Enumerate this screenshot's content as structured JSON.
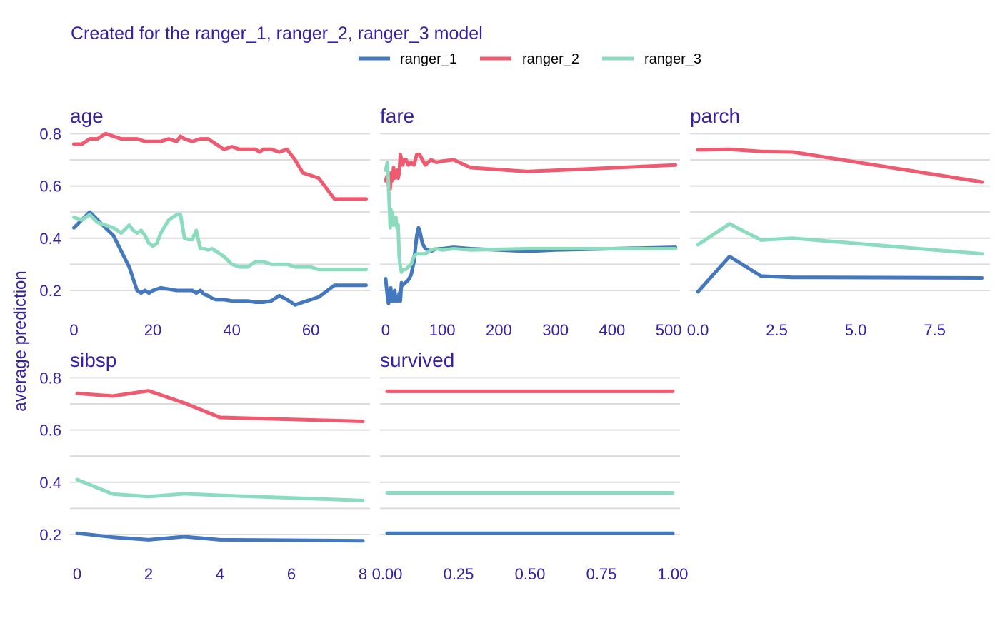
{
  "subtitle": "Created for the ranger_1, ranger_2, ranger_3 model",
  "ylabel": "average prediction",
  "colors": {
    "text": "#371ea3",
    "ranger_1": "#4378bf",
    "ranger_2": "#f05a71",
    "ranger_3": "#8bdcbe"
  },
  "chart_data": {
    "type": "line",
    "ylabel": "average prediction",
    "ylim": [
      0.11,
      0.82
    ],
    "yticks": [
      0.2,
      0.4,
      0.6,
      0.8
    ],
    "grid": true,
    "legend_position": "top",
    "legend": [
      "ranger_1",
      "ranger_2",
      "ranger_3"
    ],
    "panels": [
      {
        "title": "age",
        "xlim": [
          -1,
          75
        ],
        "xticks": [
          0,
          20,
          40,
          60
        ],
        "series": [
          {
            "name": "ranger_1",
            "x": [
              0,
              2,
              4,
              6,
              8,
              10,
              12,
              14,
              16,
              17,
              18,
              19,
              20,
              22,
              24,
              26,
              28,
              30,
              31,
              32,
              33,
              34,
              35,
              36,
              38,
              40,
              42,
              44,
              46,
              48,
              50,
              52,
              54,
              56,
              58,
              62,
              66,
              70,
              74
            ],
            "y": [
              0.44,
              0.47,
              0.5,
              0.47,
              0.44,
              0.41,
              0.35,
              0.29,
              0.2,
              0.19,
              0.2,
              0.19,
              0.2,
              0.21,
              0.205,
              0.2,
              0.2,
              0.2,
              0.19,
              0.2,
              0.185,
              0.18,
              0.17,
              0.165,
              0.165,
              0.16,
              0.16,
              0.16,
              0.155,
              0.155,
              0.16,
              0.18,
              0.165,
              0.145,
              0.155,
              0.175,
              0.22,
              0.22,
              0.22
            ]
          },
          {
            "name": "ranger_2",
            "x": [
              0,
              2,
              4,
              6,
              8,
              10,
              12,
              14,
              16,
              18,
              20,
              22,
              24,
              26,
              27,
              28,
              30,
              32,
              34,
              36,
              38,
              40,
              42,
              44,
              46,
              47,
              48,
              50,
              52,
              54,
              56,
              58,
              62,
              66,
              70,
              74
            ],
            "y": [
              0.76,
              0.76,
              0.78,
              0.78,
              0.8,
              0.79,
              0.78,
              0.78,
              0.78,
              0.77,
              0.77,
              0.77,
              0.78,
              0.77,
              0.79,
              0.78,
              0.77,
              0.78,
              0.78,
              0.76,
              0.74,
              0.75,
              0.74,
              0.74,
              0.74,
              0.73,
              0.74,
              0.74,
              0.73,
              0.74,
              0.7,
              0.65,
              0.63,
              0.55,
              0.55,
              0.55
            ]
          },
          {
            "name": "ranger_3",
            "x": [
              0,
              2,
              4,
              6,
              8,
              10,
              12,
              14,
              15,
              16,
              17,
              18,
              19,
              20,
              21,
              22,
              24,
              26,
              27,
              28,
              29,
              30,
              31,
              32,
              33,
              34,
              35,
              36,
              38,
              40,
              42,
              44,
              46,
              48,
              50,
              52,
              54,
              56,
              58,
              60,
              62,
              66,
              70,
              74
            ],
            "y": [
              0.48,
              0.47,
              0.49,
              0.46,
              0.45,
              0.44,
              0.42,
              0.45,
              0.43,
              0.42,
              0.43,
              0.41,
              0.38,
              0.37,
              0.38,
              0.42,
              0.47,
              0.49,
              0.49,
              0.4,
              0.395,
              0.395,
              0.43,
              0.36,
              0.36,
              0.355,
              0.36,
              0.35,
              0.33,
              0.3,
              0.29,
              0.29,
              0.31,
              0.31,
              0.3,
              0.3,
              0.3,
              0.29,
              0.29,
              0.29,
              0.28,
              0.28,
              0.28,
              0.28
            ]
          }
        ]
      },
      {
        "title": "fare",
        "xlim": [
          -10,
          520
        ],
        "xticks": [
          0,
          100,
          200,
          300,
          400,
          500
        ],
        "series": [
          {
            "name": "ranger_1",
            "x": [
              0,
              3,
              5,
              7,
              8,
              9,
              10,
              12,
              14,
              16,
              18,
              20,
              22,
              24,
              26,
              28,
              30,
              35,
              40,
              45,
              50,
              55,
              58,
              60,
              65,
              70,
              80,
              90,
              100,
              120,
              150,
              200,
              250,
              300,
              400,
              512
            ],
            "y": [
              0.245,
              0.18,
              0.15,
              0.2,
              0.16,
              0.21,
              0.17,
              0.16,
              0.16,
              0.2,
              0.16,
              0.17,
              0.16,
              0.19,
              0.16,
              0.23,
              0.22,
              0.23,
              0.24,
              0.26,
              0.31,
              0.41,
              0.44,
              0.43,
              0.38,
              0.36,
              0.35,
              0.36,
              0.36,
              0.365,
              0.36,
              0.355,
              0.35,
              0.355,
              0.36,
              0.365
            ]
          },
          {
            "name": "ranger_2",
            "x": [
              0,
              3,
              5,
              7,
              8,
              10,
              12,
              14,
              16,
              18,
              20,
              22,
              24,
              26,
              28,
              30,
              33,
              36,
              40,
              45,
              50,
              55,
              60,
              65,
              70,
              80,
              90,
              100,
              120,
              150,
              250,
              512
            ],
            "y": [
              0.62,
              0.64,
              0.6,
              0.62,
              0.59,
              0.65,
              0.62,
              0.67,
              0.63,
              0.64,
              0.66,
              0.63,
              0.65,
              0.72,
              0.7,
              0.68,
              0.7,
              0.7,
              0.68,
              0.69,
              0.68,
              0.72,
              0.72,
              0.7,
              0.68,
              0.7,
              0.69,
              0.695,
              0.7,
              0.67,
              0.655,
              0.68
            ]
          },
          {
            "name": "ranger_3",
            "x": [
              0,
              3,
              5,
              7,
              8,
              9,
              10,
              12,
              14,
              16,
              18,
              20,
              22,
              24,
              26,
              28,
              30,
              35,
              40,
              45,
              50,
              55,
              60,
              70,
              80,
              90,
              100,
              120,
              150,
              250,
              512
            ],
            "y": [
              0.66,
              0.69,
              0.6,
              0.5,
              0.44,
              0.51,
              0.47,
              0.5,
              0.45,
              0.46,
              0.48,
              0.44,
              0.45,
              0.33,
              0.29,
              0.27,
              0.28,
              0.28,
              0.29,
              0.3,
              0.33,
              0.34,
              0.34,
              0.34,
              0.355,
              0.36,
              0.355,
              0.36,
              0.355,
              0.36,
              0.36
            ]
          }
        ]
      },
      {
        "title": "parch",
        "xlim": [
          -0.25,
          9.25
        ],
        "xticks": [
          0.0,
          2.5,
          5.0,
          7.5
        ],
        "xtick_labels": [
          "0.0",
          "2.5",
          "5.0",
          "7.5"
        ],
        "series": [
          {
            "name": "ranger_1",
            "x": [
              0,
              1,
              2,
              3,
              9
            ],
            "y": [
              0.195,
              0.33,
              0.255,
              0.25,
              0.248
            ]
          },
          {
            "name": "ranger_2",
            "x": [
              0,
              1,
              2,
              3,
              9
            ],
            "y": [
              0.738,
              0.74,
              0.732,
              0.73,
              0.615
            ]
          },
          {
            "name": "ranger_3",
            "x": [
              0,
              1,
              2,
              3,
              9
            ],
            "y": [
              0.375,
              0.455,
              0.393,
              0.4,
              0.34
            ]
          }
        ]
      },
      {
        "title": "sibsp",
        "xlim": [
          -0.2,
          8.2
        ],
        "xticks": [
          0,
          2,
          4,
          6,
          8
        ],
        "series": [
          {
            "name": "ranger_1",
            "x": [
              0,
              1,
              2,
              3,
              4,
              8
            ],
            "y": [
              0.205,
              0.19,
              0.18,
              0.192,
              0.18,
              0.176
            ]
          },
          {
            "name": "ranger_2",
            "x": [
              0,
              1,
              2,
              3,
              4,
              8
            ],
            "y": [
              0.74,
              0.73,
              0.75,
              0.703,
              0.648,
              0.633
            ]
          },
          {
            "name": "ranger_3",
            "x": [
              0,
              1,
              2,
              3,
              4,
              8
            ],
            "y": [
              0.41,
              0.355,
              0.345,
              0.356,
              0.35,
              0.33
            ]
          }
        ]
      },
      {
        "title": "survived",
        "xlim": [
          -0.025,
          1.025
        ],
        "xticks": [
          0.0,
          0.25,
          0.5,
          0.75,
          1.0
        ],
        "xtick_labels": [
          "0.00",
          "0.25",
          "0.50",
          "0.75",
          "1.00"
        ],
        "series": [
          {
            "name": "ranger_1",
            "x": [
              0,
              1
            ],
            "y": [
              0.205,
              0.205
            ]
          },
          {
            "name": "ranger_2",
            "x": [
              0,
              1
            ],
            "y": [
              0.748,
              0.748
            ]
          },
          {
            "name": "ranger_3",
            "x": [
              0,
              1
            ],
            "y": [
              0.36,
              0.36
            ]
          }
        ]
      }
    ]
  }
}
